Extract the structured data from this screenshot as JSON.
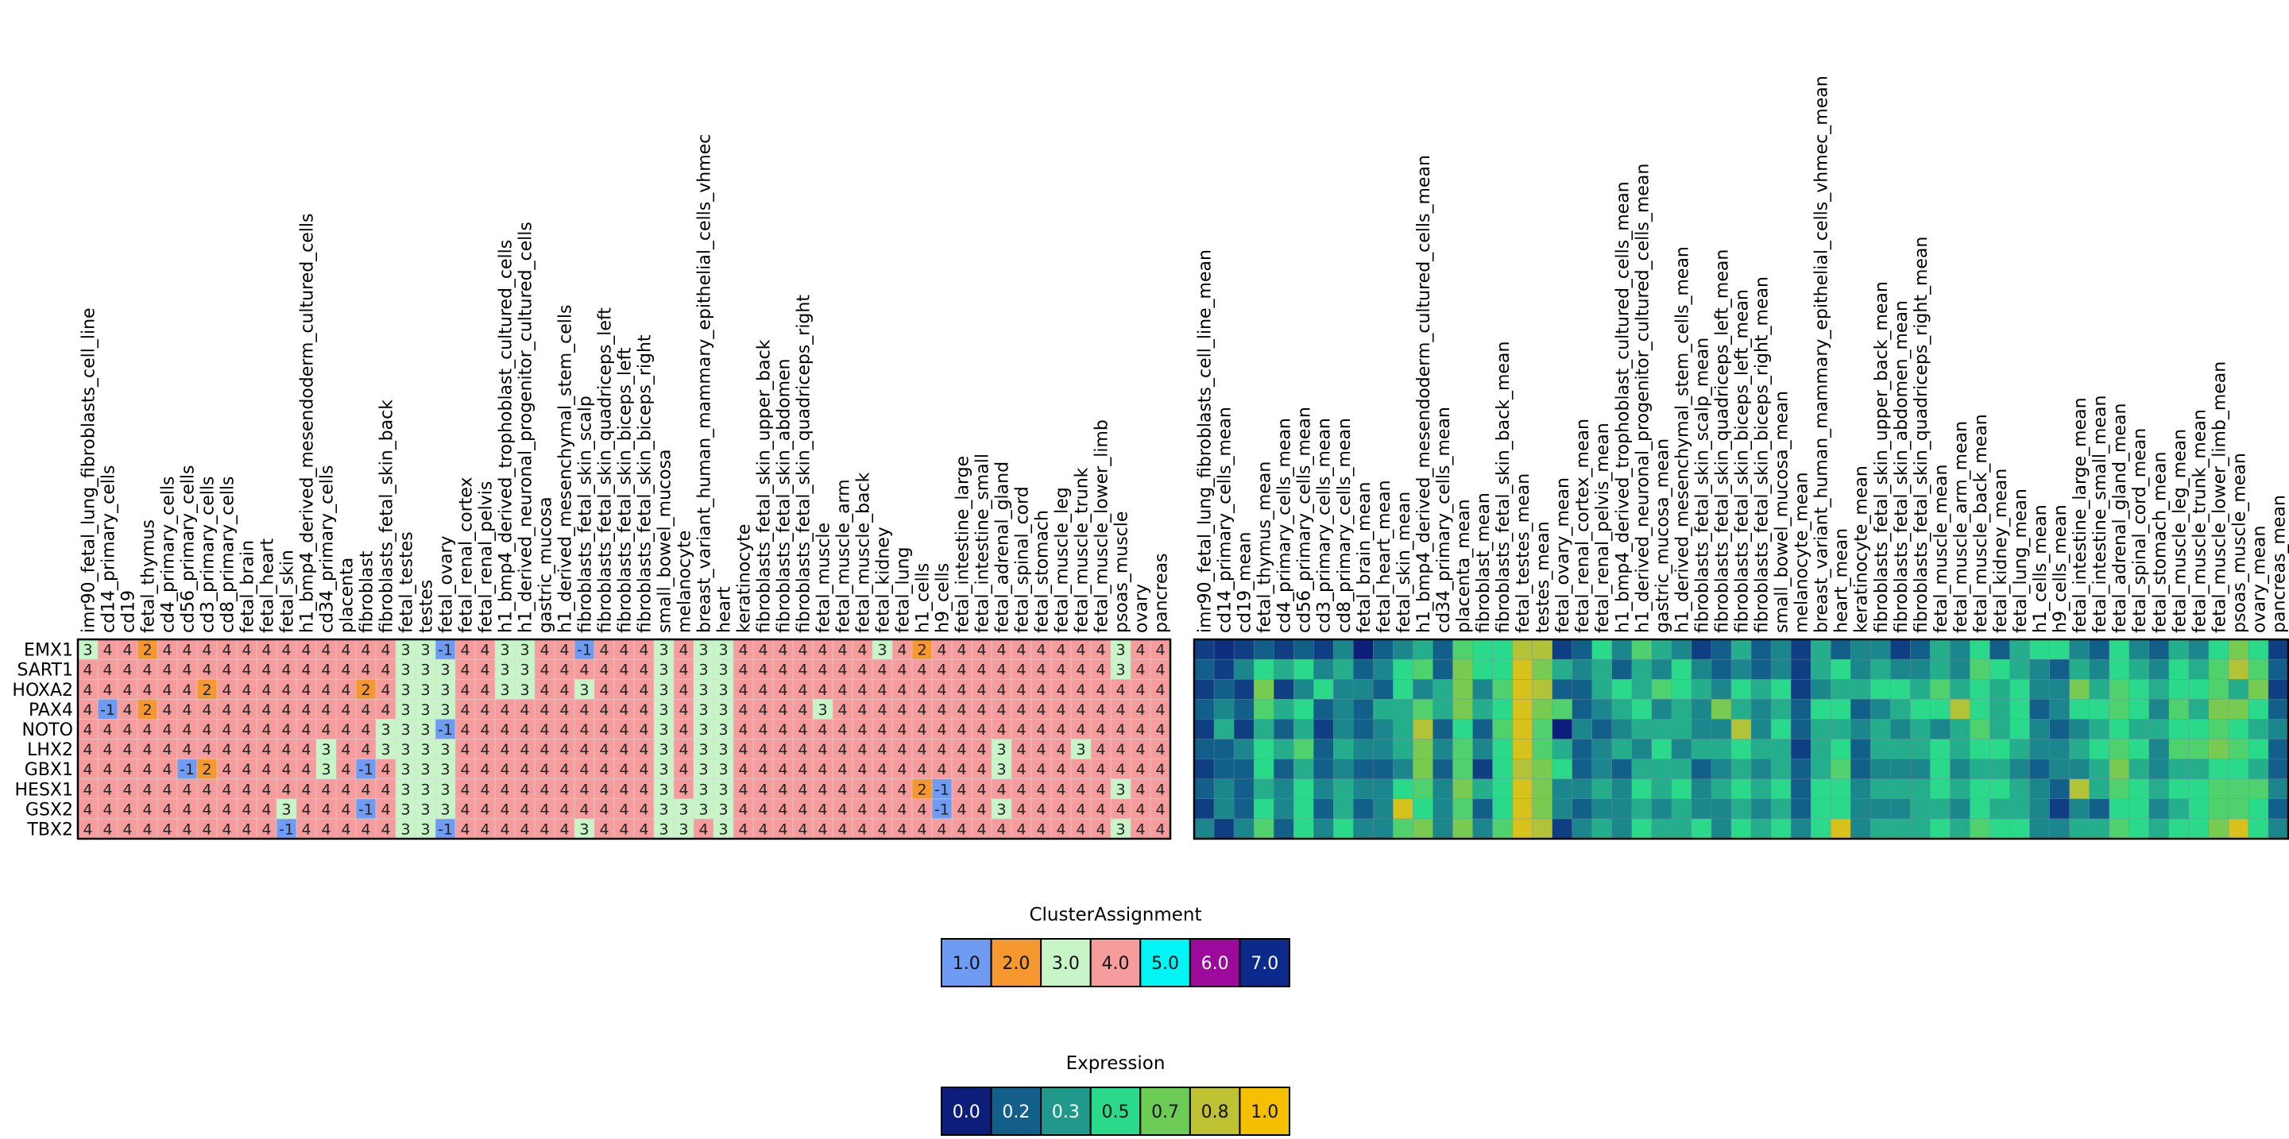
{
  "chart_data": {
    "type": "heatmap",
    "genes": [
      "EMX1",
      "SART1",
      "HOXA2",
      "PAX4",
      "NOTO",
      "LHX2",
      "GBX1",
      "HESX1",
      "GSX2",
      "TBX2"
    ],
    "samples": [
      "imr90_fetal_lung_fibroblasts_cell_line",
      "cd14_primary_cells",
      "cd19",
      "fetal_thymus",
      "cd4_primary_cells",
      "cd56_primary_cells",
      "cd3_primary_cells",
      "cd8_primary_cells",
      "fetal_brain",
      "fetal_heart",
      "fetal_skin",
      "h1_bmp4_derived_mesendoderm_cultured_cells",
      "cd34_primary_cells",
      "placenta",
      "fibroblast",
      "fibroblasts_fetal_skin_back",
      "fetal_testes",
      "testes",
      "fetal_ovary",
      "fetal_renal_cortex",
      "fetal_renal_pelvis",
      "h1_bmp4_derived_trophoblast_cultured_cells",
      "h1_derived_neuronal_progenitor_cultured_cells",
      "gastric_mucosa",
      "h1_derived_mesenchymal_stem_cells",
      "fibroblasts_fetal_skin_scalp",
      "fibroblasts_fetal_skin_quadriceps_left",
      "fibroblasts_fetal_skin_biceps_left",
      "fibroblasts_fetal_skin_biceps_right",
      "small_bowel_mucosa",
      "melanocyte",
      "breast_variant_human_mammary_epithelial_cells_vhmec",
      "heart",
      "keratinocyte",
      "fibroblasts_fetal_skin_upper_back",
      "fibroblasts_fetal_skin_abdomen",
      "fibroblasts_fetal_skin_quadriceps_right",
      "fetal_muscle",
      "fetal_muscle_arm",
      "fetal_muscle_back",
      "fetal_kidney",
      "fetal_lung",
      "h1_cells",
      "h9_cells",
      "fetal_intestine_large",
      "fetal_intestine_small",
      "fetal_adrenal_gland",
      "fetal_spinal_cord",
      "fetal_stomach",
      "fetal_muscle_leg",
      "fetal_muscle_trunk",
      "fetal_muscle_lower_limb",
      "psoas_muscle",
      "ovary",
      "pancreas"
    ],
    "cluster_values": [
      [
        3,
        4,
        4,
        2,
        4,
        4,
        4,
        4,
        4,
        4,
        4,
        4,
        4,
        4,
        4,
        4,
        3,
        3,
        -1,
        4,
        4,
        3,
        3,
        4,
        4,
        -1,
        4,
        4,
        4,
        3,
        4,
        3,
        3,
        4,
        4,
        4,
        4,
        4,
        4,
        4,
        3,
        4,
        2,
        4,
        4,
        4,
        4,
        4,
        4,
        4,
        4,
        4,
        3,
        4,
        4
      ],
      [
        4,
        4,
        4,
        4,
        4,
        4,
        4,
        4,
        4,
        4,
        4,
        4,
        4,
        4,
        4,
        4,
        3,
        3,
        3,
        4,
        4,
        3,
        3,
        4,
        4,
        4,
        4,
        4,
        4,
        3,
        4,
        3,
        3,
        4,
        4,
        4,
        4,
        4,
        4,
        4,
        4,
        4,
        4,
        4,
        4,
        4,
        4,
        4,
        4,
        4,
        4,
        4,
        3,
        4,
        4
      ],
      [
        4,
        4,
        4,
        4,
        4,
        4,
        2,
        4,
        4,
        4,
        4,
        4,
        4,
        4,
        2,
        4,
        3,
        3,
        3,
        4,
        4,
        3,
        3,
        4,
        4,
        3,
        4,
        4,
        4,
        3,
        4,
        3,
        3,
        4,
        4,
        4,
        4,
        4,
        4,
        4,
        4,
        4,
        4,
        4,
        4,
        4,
        4,
        4,
        4,
        4,
        4,
        4,
        4,
        4,
        4
      ],
      [
        4,
        -1,
        4,
        2,
        4,
        4,
        4,
        4,
        4,
        4,
        4,
        4,
        4,
        4,
        4,
        4,
        3,
        3,
        3,
        4,
        4,
        4,
        4,
        4,
        4,
        4,
        4,
        4,
        4,
        3,
        4,
        3,
        3,
        4,
        4,
        4,
        4,
        3,
        4,
        4,
        4,
        4,
        4,
        4,
        4,
        4,
        4,
        4,
        4,
        4,
        4,
        4,
        4,
        4,
        4
      ],
      [
        4,
        4,
        4,
        4,
        4,
        4,
        4,
        4,
        4,
        4,
        4,
        4,
        4,
        4,
        4,
        3,
        3,
        3,
        -1,
        4,
        4,
        4,
        4,
        4,
        4,
        4,
        4,
        4,
        4,
        3,
        4,
        3,
        3,
        4,
        4,
        4,
        4,
        4,
        4,
        4,
        4,
        4,
        4,
        4,
        4,
        4,
        4,
        4,
        4,
        4,
        4,
        4,
        4,
        4,
        4
      ],
      [
        4,
        4,
        4,
        4,
        4,
        4,
        4,
        4,
        4,
        4,
        4,
        4,
        3,
        4,
        4,
        3,
        3,
        3,
        3,
        4,
        4,
        4,
        4,
        4,
        4,
        4,
        4,
        4,
        4,
        3,
        4,
        3,
        3,
        4,
        4,
        4,
        4,
        4,
        4,
        4,
        4,
        4,
        4,
        4,
        4,
        4,
        3,
        4,
        4,
        4,
        3,
        4,
        4,
        4,
        4
      ],
      [
        4,
        4,
        4,
        4,
        4,
        -1,
        2,
        4,
        4,
        4,
        4,
        4,
        3,
        4,
        -1,
        4,
        3,
        3,
        3,
        4,
        4,
        4,
        4,
        4,
        4,
        4,
        4,
        4,
        4,
        3,
        4,
        3,
        3,
        4,
        4,
        4,
        4,
        4,
        4,
        4,
        4,
        4,
        4,
        4,
        4,
        4,
        3,
        4,
        4,
        4,
        4,
        4,
        4,
        4,
        4
      ],
      [
        4,
        4,
        4,
        4,
        4,
        4,
        4,
        4,
        4,
        4,
        4,
        4,
        4,
        4,
        4,
        4,
        3,
        3,
        3,
        4,
        4,
        4,
        4,
        4,
        4,
        4,
        4,
        4,
        4,
        3,
        4,
        3,
        3,
        4,
        4,
        4,
        4,
        4,
        4,
        4,
        4,
        4,
        2,
        -1,
        4,
        4,
        4,
        4,
        4,
        4,
        4,
        4,
        3,
        4,
        4
      ],
      [
        4,
        4,
        4,
        4,
        4,
        4,
        4,
        4,
        4,
        4,
        3,
        4,
        4,
        4,
        -1,
        4,
        3,
        3,
        3,
        4,
        4,
        4,
        4,
        4,
        4,
        4,
        4,
        4,
        4,
        3,
        3,
        3,
        3,
        4,
        4,
        4,
        4,
        4,
        4,
        4,
        4,
        4,
        4,
        -1,
        4,
        4,
        3,
        4,
        4,
        4,
        4,
        4,
        4,
        4,
        4
      ],
      [
        4,
        4,
        4,
        4,
        4,
        4,
        4,
        4,
        4,
        4,
        -1,
        4,
        4,
        4,
        4,
        4,
        3,
        3,
        -1,
        4,
        4,
        4,
        4,
        4,
        4,
        3,
        4,
        4,
        4,
        3,
        3,
        4,
        3,
        4,
        4,
        4,
        4,
        4,
        4,
        4,
        4,
        4,
        4,
        4,
        4,
        4,
        4,
        4,
        4,
        4,
        4,
        4,
        3,
        4,
        4
      ]
    ],
    "mean_samples": [
      "imr90_fetal_lung_fibroblasts_cell_line_mean",
      "cd14_primary_cells_mean",
      "cd19_mean",
      "fetal_thymus_mean",
      "cd4_primary_cells_mean",
      "cd56_primary_cells_mean",
      "cd3_primary_cells_mean",
      "cd8_primary_cells_mean",
      "fetal_brain_mean",
      "fetal_heart_mean",
      "fetal_skin_mean",
      "h1_bmp4_derived_mesendoderm_cultured_cells_mean",
      "cd34_primary_cells_mean",
      "placenta_mean",
      "fibroblast_mean",
      "fibroblasts_fetal_skin_back_mean",
      "fetal_testes_mean",
      "testes_mean",
      "fetal_ovary_mean",
      "fetal_renal_cortex_mean",
      "fetal_renal_pelvis_mean",
      "h1_bmp4_derived_trophoblast_cultured_cells_mean",
      "h1_derived_neuronal_progenitor_cultured_cells_mean",
      "gastric_mucosa_mean",
      "h1_derived_mesenchymal_stem_cells_mean",
      "fibroblasts_fetal_skin_scalp_mean",
      "fibroblasts_fetal_skin_quadriceps_left_mean",
      "fibroblasts_fetal_skin_biceps_left_mean",
      "fibroblasts_fetal_skin_biceps_right_mean",
      "small_bowel_mucosa_mean",
      "melanocyte_mean",
      "breast_variant_human_mammary_epithelial_cells_vhmec_mean",
      "heart_mean",
      "keratinocyte_mean",
      "fibroblasts_fetal_skin_upper_back_mean",
      "fibroblasts_fetal_skin_abdomen_mean",
      "fibroblasts_fetal_skin_quadriceps_right_mean",
      "fetal_muscle_mean",
      "fetal_muscle_arm_mean",
      "fetal_muscle_back_mean",
      "fetal_kidney_mean",
      "fetal_lung_mean",
      "h1_cells_mean",
      "h9_cells_mean",
      "fetal_intestine_large_mean",
      "fetal_intestine_small_mean",
      "fetal_adrenal_gland_mean",
      "fetal_spinal_cord_mean",
      "fetal_stomach_mean",
      "fetal_muscle_leg_mean",
      "fetal_muscle_trunk_mean",
      "fetal_muscle_lower_limb_mean",
      "psoas_muscle_mean",
      "ovary_mean",
      "pancreas_mean"
    ],
    "expression_values": [
      [
        0.1,
        0.05,
        0.1,
        0.2,
        0.1,
        0.2,
        0.1,
        0.3,
        0.0,
        0.2,
        0.3,
        0.4,
        0.2,
        0.6,
        0.5,
        0.5,
        0.8,
        0.8,
        0.1,
        0.2,
        0.5,
        0.3,
        0.6,
        0.4,
        0.3,
        0.1,
        0.2,
        0.4,
        0.2,
        0.3,
        0.1,
        0.4,
        0.2,
        0.3,
        0.3,
        0.1,
        0.2,
        0.4,
        0.3,
        0.5,
        0.2,
        0.4,
        0.5,
        0.5,
        0.3,
        0.2,
        0.5,
        0.3,
        0.2,
        0.4,
        0.3,
        0.5,
        0.7,
        0.5,
        0.1
      ],
      [
        0.2,
        0.1,
        0.3,
        0.5,
        0.4,
        0.5,
        0.3,
        0.4,
        0.2,
        0.3,
        0.5,
        0.6,
        0.2,
        0.7,
        0.5,
        0.5,
        0.9,
        0.7,
        0.4,
        0.3,
        0.4,
        0.2,
        0.4,
        0.3,
        0.5,
        0.3,
        0.2,
        0.3,
        0.2,
        0.3,
        0.1,
        0.4,
        0.5,
        0.3,
        0.4,
        0.3,
        0.3,
        0.4,
        0.3,
        0.6,
        0.5,
        0.4,
        0.3,
        0.2,
        0.4,
        0.3,
        0.5,
        0.4,
        0.3,
        0.5,
        0.4,
        0.6,
        0.8,
        0.6,
        0.2
      ],
      [
        0.1,
        0.2,
        0.1,
        0.7,
        0.1,
        0.3,
        0.5,
        0.3,
        0.3,
        0.2,
        0.5,
        0.3,
        0.4,
        0.7,
        0.3,
        0.6,
        0.9,
        0.8,
        0.2,
        0.2,
        0.4,
        0.5,
        0.4,
        0.6,
        0.5,
        0.4,
        0.3,
        0.5,
        0.4,
        0.5,
        0.1,
        0.3,
        0.4,
        0.4,
        0.5,
        0.5,
        0.4,
        0.6,
        0.4,
        0.5,
        0.4,
        0.5,
        0.3,
        0.3,
        0.7,
        0.4,
        0.6,
        0.5,
        0.4,
        0.5,
        0.5,
        0.6,
        0.4,
        0.7,
        0.1
      ],
      [
        0.2,
        0.3,
        0.2,
        0.6,
        0.4,
        0.5,
        0.2,
        0.3,
        0.2,
        0.4,
        0.4,
        0.6,
        0.4,
        0.7,
        0.4,
        0.5,
        0.9,
        0.7,
        0.6,
        0.2,
        0.3,
        0.4,
        0.5,
        0.3,
        0.4,
        0.3,
        0.7,
        0.4,
        0.3,
        0.4,
        0.2,
        0.5,
        0.5,
        0.2,
        0.3,
        0.4,
        0.5,
        0.5,
        0.8,
        0.5,
        0.4,
        0.5,
        0.2,
        0.3,
        0.5,
        0.5,
        0.6,
        0.5,
        0.3,
        0.6,
        0.4,
        0.7,
        0.7,
        0.5,
        0.2
      ],
      [
        0.1,
        0.4,
        0.1,
        0.4,
        0.2,
        0.4,
        0.1,
        0.3,
        0.2,
        0.3,
        0.4,
        0.8,
        0.2,
        0.5,
        0.2,
        0.6,
        0.9,
        0.6,
        0.0,
        0.3,
        0.2,
        0.3,
        0.4,
        0.4,
        0.4,
        0.3,
        0.3,
        0.8,
        0.3,
        0.5,
        0.2,
        0.4,
        0.4,
        0.3,
        0.4,
        0.3,
        0.4,
        0.3,
        0.4,
        0.6,
        0.4,
        0.5,
        0.3,
        0.2,
        0.3,
        0.4,
        0.5,
        0.4,
        0.4,
        0.5,
        0.5,
        0.6,
        0.5,
        0.4,
        0.3
      ],
      [
        0.2,
        0.2,
        0.3,
        0.5,
        0.4,
        0.6,
        0.2,
        0.4,
        0.3,
        0.3,
        0.4,
        0.7,
        0.3,
        0.6,
        0.3,
        0.5,
        0.9,
        0.6,
        0.4,
        0.2,
        0.3,
        0.4,
        0.3,
        0.5,
        0.3,
        0.4,
        0.4,
        0.5,
        0.4,
        0.4,
        0.1,
        0.4,
        0.5,
        0.2,
        0.4,
        0.4,
        0.4,
        0.5,
        0.4,
        0.5,
        0.5,
        0.4,
        0.3,
        0.3,
        0.4,
        0.5,
        0.6,
        0.5,
        0.3,
        0.6,
        0.6,
        0.7,
        0.6,
        0.5,
        0.2
      ],
      [
        0.1,
        0.2,
        0.2,
        0.5,
        0.2,
        0.4,
        0.2,
        0.3,
        0.2,
        0.2,
        0.3,
        0.7,
        0.2,
        0.6,
        0.1,
        0.5,
        0.8,
        0.7,
        0.5,
        0.2,
        0.3,
        0.2,
        0.4,
        0.4,
        0.4,
        0.2,
        0.3,
        0.4,
        0.3,
        0.4,
        0.2,
        0.4,
        0.6,
        0.2,
        0.3,
        0.3,
        0.3,
        0.5,
        0.3,
        0.4,
        0.4,
        0.3,
        0.2,
        0.3,
        0.3,
        0.4,
        0.7,
        0.4,
        0.3,
        0.4,
        0.4,
        0.5,
        0.5,
        0.4,
        0.2
      ],
      [
        0.2,
        0.3,
        0.2,
        0.4,
        0.3,
        0.5,
        0.3,
        0.4,
        0.3,
        0.3,
        0.5,
        0.6,
        0.3,
        0.7,
        0.4,
        0.5,
        0.9,
        0.7,
        0.3,
        0.3,
        0.4,
        0.3,
        0.5,
        0.4,
        0.5,
        0.3,
        0.4,
        0.5,
        0.4,
        0.5,
        0.2,
        0.5,
        0.5,
        0.3,
        0.4,
        0.4,
        0.4,
        0.5,
        0.4,
        0.5,
        0.5,
        0.4,
        0.3,
        0.2,
        0.8,
        0.4,
        0.6,
        0.5,
        0.4,
        0.5,
        0.5,
        0.6,
        0.6,
        0.6,
        0.3
      ],
      [
        0.1,
        0.3,
        0.2,
        0.5,
        0.3,
        0.5,
        0.2,
        0.4,
        0.2,
        0.3,
        0.9,
        0.5,
        0.3,
        0.6,
        0.2,
        0.5,
        0.9,
        0.7,
        0.3,
        0.2,
        0.3,
        0.3,
        0.4,
        0.3,
        0.4,
        0.3,
        0.3,
        0.4,
        0.3,
        0.4,
        0.2,
        0.5,
        0.5,
        0.3,
        0.3,
        0.3,
        0.4,
        0.4,
        0.3,
        0.5,
        0.4,
        0.4,
        0.3,
        0.1,
        0.3,
        0.2,
        0.5,
        0.5,
        0.3,
        0.4,
        0.5,
        0.6,
        0.6,
        0.5,
        0.2
      ],
      [
        0.3,
        0.1,
        0.3,
        0.6,
        0.2,
        0.5,
        0.3,
        0.5,
        0.3,
        0.3,
        0.6,
        0.7,
        0.3,
        0.7,
        0.3,
        0.6,
        0.9,
        0.8,
        0.1,
        0.3,
        0.4,
        0.3,
        0.5,
        0.4,
        0.4,
        0.5,
        0.3,
        0.5,
        0.4,
        0.5,
        0.3,
        0.5,
        0.9,
        0.3,
        0.4,
        0.4,
        0.4,
        0.5,
        0.4,
        0.6,
        0.5,
        0.5,
        0.3,
        0.3,
        0.4,
        0.4,
        0.6,
        0.5,
        0.4,
        0.5,
        0.5,
        0.7,
        0.9,
        0.5,
        0.3
      ]
    ],
    "cluster_legend": {
      "title": "ClusterAssignment",
      "labels": [
        "1.0",
        "2.0",
        "3.0",
        "4.0",
        "5.0",
        "6.0",
        "7.0"
      ],
      "colors": [
        "#6f9cf2",
        "#f5982f",
        "#c7f5c8",
        "#f69c9c",
        "#00f5f5",
        "#9b0a9b",
        "#0b2a8c"
      ]
    },
    "expression_legend": {
      "title": "Expression",
      "labels": [
        "0.0",
        "0.2",
        "0.3",
        "0.5",
        "0.7",
        "0.8",
        "1.0"
      ],
      "colors": [
        "#0c1e7a",
        "#125f8a",
        "#20998c",
        "#2bd98a",
        "#6ccc56",
        "#bfc233",
        "#f5c000"
      ]
    },
    "cell_colors": {
      "-1": "#6f9cf2",
      "2": "#f5982f",
      "3": "#c7f5c8",
      "4": "#f69c9c"
    }
  }
}
